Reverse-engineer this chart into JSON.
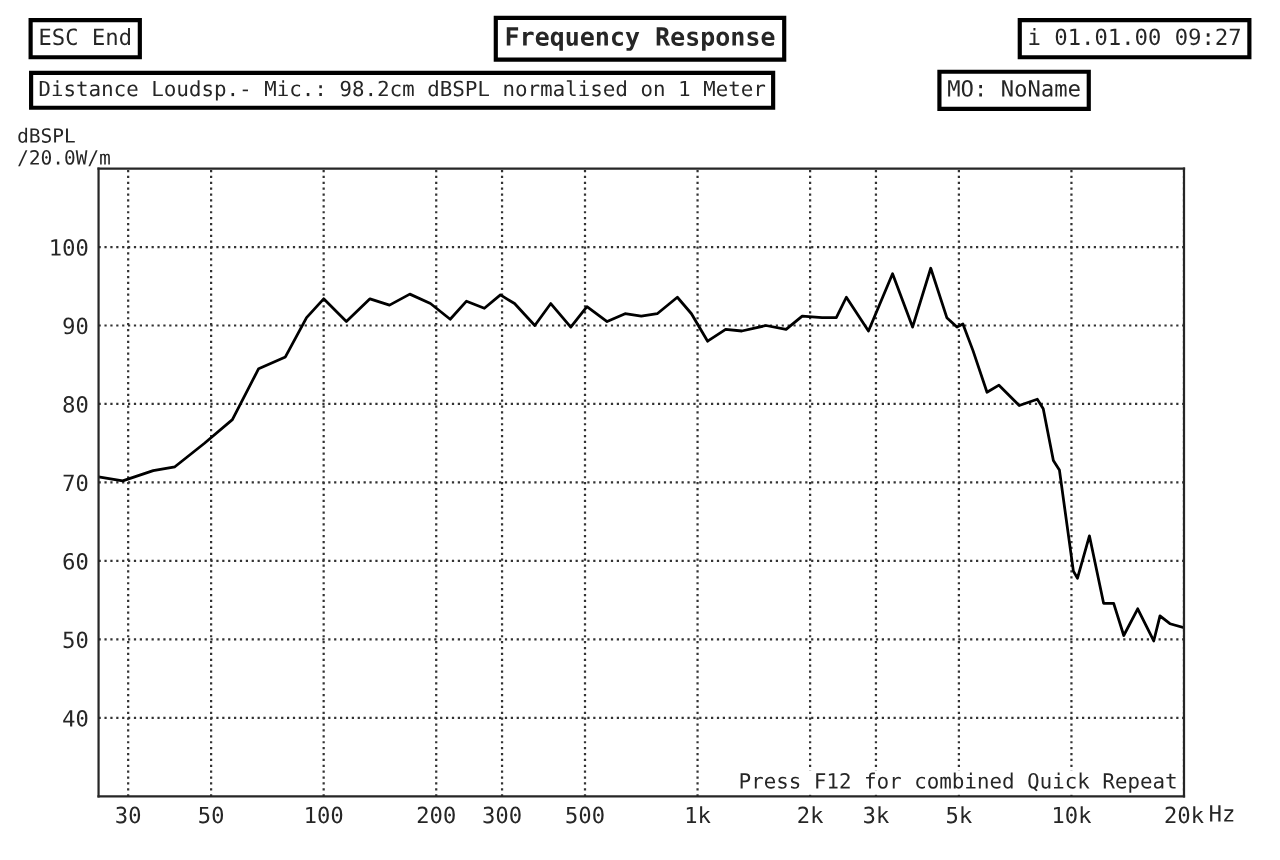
{
  "chart_data": {
    "type": "line",
    "title": "Frequency Response",
    "subtitle": "Distance Loudsp.- Mic.: 98.2cm dBSPL normalised on 1 Meter",
    "ylabel": "dBSPL\n/20.0W/m",
    "annotations": [
      "ESC End",
      "i 01.01.00 09:27",
      "MO: NoName",
      "Press F12 for combined Quick Repeat"
    ],
    "x": [
      25,
      29,
      35,
      40,
      48,
      57,
      67,
      79,
      90,
      100,
      115,
      133,
      150,
      170,
      193,
      218,
      241,
      269,
      297,
      324,
      367,
      405,
      458,
      506,
      573,
      640,
      707,
      780,
      883,
      963,
      1064,
      1189,
      1313,
      1524,
      1725,
      1905,
      2153,
      2350,
      2500,
      2865,
      3323,
      3759,
      4204,
      4642,
      4940,
      5125,
      5454,
      5945,
      6400,
      7250,
      8104,
      8405,
      8946,
      9285,
      10120,
      10380,
      11170,
      12190,
      12970,
      13800,
      15040,
      16600,
      17250,
      18340,
      20000
    ],
    "series": [
      {
        "color": "#000000",
        "values": [
          70.7,
          70.2,
          71.5,
          72,
          75,
          78,
          84.5,
          86,
          91,
          93.4,
          90.5,
          93.4,
          92.6,
          94,
          92.8,
          90.8,
          93.1,
          92.2,
          93.9,
          92.8,
          90,
          92.8,
          89.8,
          92.4,
          90.5,
          91.5,
          91.2,
          91.5,
          93.6,
          91.5,
          88,
          89.5,
          89.3,
          90,
          89.5,
          91.2,
          91,
          91,
          93.6,
          89.3,
          96.6,
          89.8,
          97.3,
          91,
          89.8,
          90.2,
          86.8,
          81.5,
          82.4,
          79.8,
          80.6,
          79.4,
          72.8,
          71.6,
          58.7,
          57.8,
          63.2,
          54.6,
          54.6,
          50.5,
          53.9,
          49.8,
          53,
          52,
          51.5
        ]
      }
    ],
    "log": "x",
    "xlim": [
      25,
      20000
    ],
    "ylim": [
      30,
      110
    ],
    "xticks": [
      30,
      50,
      100,
      200,
      300,
      500,
      {
        "value": 1000,
        "label": "1k"
      },
      {
        "value": 2000,
        "label": "2k"
      },
      {
        "value": 3000,
        "label": "3k"
      },
      {
        "value": 5000,
        "label": "5k"
      },
      {
        "value": 10000,
        "label": "10k"
      },
      {
        "value": 20000,
        "label": "20k"
      }
    ],
    "xlabel": "Hz",
    "yticks": [
      40,
      50,
      60,
      70,
      80,
      90,
      100
    ],
    "grid": true,
    "legend": false,
    "marker": "none",
    "line_style": "solid"
  }
}
